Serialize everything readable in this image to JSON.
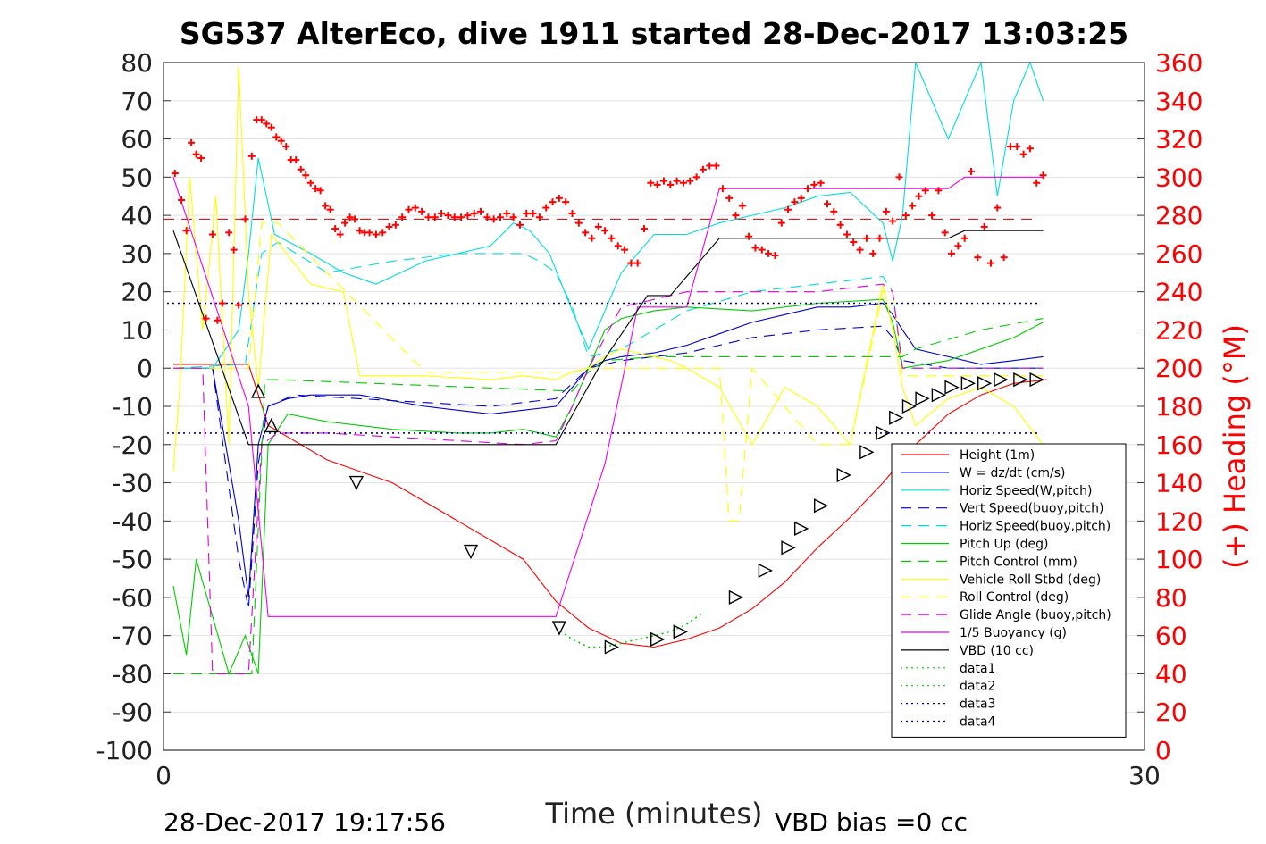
{
  "chart_data": {
    "type": "line",
    "title": "SG537 AlterEco, dive 1911 started 28-Dec-2017 13:03:25",
    "xlabel": "Time (minutes)",
    "ylabel": "",
    "y2label": "(+) Heading (°M)",
    "xlim": [
      0,
      30
    ],
    "ylim": [
      -100,
      80
    ],
    "y2lim": [
      0,
      360
    ],
    "x_ticks": [
      "0",
      "30"
    ],
    "y_ticks": [
      "80",
      "70",
      "60",
      "50",
      "40",
      "30",
      "20",
      "10",
      "0",
      "-10",
      "-20",
      "-30",
      "-40",
      "-50",
      "-60",
      "-70",
      "-80",
      "-90",
      "-100"
    ],
    "y2_ticks": [
      "360",
      "340",
      "320",
      "300",
      "280",
      "260",
      "240",
      "220",
      "200",
      "180",
      "160",
      "140",
      "120",
      "100",
      "80",
      "60",
      "40",
      "20",
      "0"
    ],
    "grid": true,
    "legend_position": "lower-right",
    "footer_left": "28-Dec-2017 19:17:56",
    "footer_right": "VBD bias =0 cc",
    "series": [
      {
        "name": "Height (1m)",
        "color": "#ff0000",
        "dash": "solid",
        "x": [
          0.3,
          2.6,
          3.2,
          5,
          7,
          9,
          11,
          12,
          13,
          14,
          15,
          16,
          17,
          18,
          19,
          20,
          21,
          22,
          23,
          24,
          25,
          26,
          27
        ],
        "y": [
          1,
          1,
          -15,
          -24,
          -30,
          -40,
          -50,
          -61,
          -68,
          -72,
          -73,
          -71,
          -68,
          -63,
          -56,
          -47,
          -39,
          -30,
          -20,
          -12,
          -7,
          -4,
          -3
        ]
      },
      {
        "name": "W = dz/dt (cm/s)",
        "color": "#0000cc",
        "dash": "solid",
        "x": [
          0.3,
          1.5,
          2.3,
          2.6,
          2.9,
          3.2,
          3.8,
          4.5,
          6,
          8,
          10,
          11,
          12,
          12.5,
          13,
          13.5,
          14,
          15,
          16,
          17,
          18,
          19,
          20,
          21,
          22,
          22.3,
          22.6,
          23,
          24,
          25,
          26,
          26.9
        ],
        "y": [
          0,
          0,
          -40,
          -60,
          -20,
          -10,
          -8,
          -7,
          -7,
          -10,
          -12,
          -11,
          -10,
          -5,
          0,
          2,
          3,
          4,
          6,
          9,
          12,
          14,
          16,
          16,
          17,
          14,
          10,
          5,
          3,
          1,
          2,
          3
        ]
      },
      {
        "name": "Horiz Speed(W,pitch)",
        "color": "#00dddd",
        "dash": "solid",
        "x": [
          0.3,
          1.5,
          2.3,
          2.6,
          2.9,
          3.4,
          4.5,
          5.5,
          6.5,
          8,
          9,
          10,
          10.7,
          11.2,
          11.8,
          12.5,
          13,
          13.5,
          14,
          15,
          16,
          17,
          18,
          19,
          20,
          21,
          22,
          22.3,
          22.6,
          23,
          24,
          25,
          25.5,
          26,
          26.5,
          26.9
        ],
        "y": [
          0,
          0,
          10,
          30,
          55,
          35,
          30,
          25,
          22,
          28,
          30,
          32,
          38,
          36,
          30,
          15,
          5,
          15,
          25,
          35,
          35,
          38,
          40,
          42,
          45,
          46,
          38,
          28,
          40,
          80,
          60,
          80,
          45,
          70,
          80,
          70
        ]
      },
      {
        "name": "Vert Speed(buoy,pitch)",
        "color": "#0000cc",
        "dash": "12,8",
        "x": [
          0.3,
          1.5,
          2.3,
          2.6,
          2.9,
          3.2,
          4,
          6,
          8,
          10,
          11,
          12,
          12.5,
          13,
          14,
          16,
          18,
          20,
          22,
          22.3,
          22.6,
          24,
          26,
          26.9
        ],
        "y": [
          0,
          0,
          -50,
          -63,
          -25,
          -10,
          -7,
          -8,
          -9,
          -10,
          -9,
          -8,
          -4,
          0,
          2,
          4,
          8,
          10,
          11,
          8,
          2,
          0,
          0,
          0
        ]
      },
      {
        "name": "Horiz Speed(buoy,pitch)",
        "color": "#00dddd",
        "dash": "12,8",
        "x": [
          0.3,
          2.5,
          3,
          3.5,
          5,
          7,
          9,
          11,
          11.5,
          12,
          12.5,
          13,
          14,
          16,
          18,
          20,
          22,
          22.3,
          22.6,
          24,
          26,
          26.9
        ],
        "y": [
          0,
          1,
          30,
          33,
          25,
          28,
          30,
          30,
          28,
          25,
          16,
          3,
          5,
          15,
          20,
          22,
          24,
          20,
          0,
          0,
          0,
          0
        ]
      },
      {
        "name": "Pitch Up (deg)",
        "color": "#00cc00",
        "dash": "solid",
        "x": [
          0.3,
          0.7,
          1,
          1.5,
          2,
          2.5,
          2.9,
          3.2,
          3.8,
          5,
          7,
          9,
          10,
          11,
          12,
          12.5,
          13,
          13.5,
          14,
          15,
          16,
          18,
          20,
          22,
          22.3,
          22.6,
          24,
          26,
          26.9
        ],
        "y": [
          -57,
          -75,
          -50,
          -65,
          -80,
          -70,
          -80,
          -20,
          -12,
          -14,
          -16,
          -17,
          -17,
          -16,
          -18,
          -10,
          0,
          10,
          13,
          15,
          16,
          15,
          17,
          18,
          12,
          0,
          2,
          8,
          12
        ]
      },
      {
        "name": "Pitch Control (mm)",
        "color": "#00cc00",
        "dash": "12,8",
        "x": [
          0.3,
          2.7,
          3.1,
          3.5,
          12.5,
          13,
          13.5,
          15,
          22.6,
          23,
          25,
          26.9
        ],
        "y": [
          -80,
          -80,
          -3,
          -3,
          -6,
          -1,
          2,
          3,
          3,
          5,
          10,
          13
        ]
      },
      {
        "name": "Vehicle Roll Stbd (deg)",
        "color": "#ffff00",
        "dash": "solid",
        "x": [
          0.3,
          0.5,
          0.8,
          1.2,
          1.6,
          2,
          2.3,
          2.6,
          2.9,
          3.3,
          4.5,
          5.5,
          6,
          8,
          10,
          11,
          12,
          12.5,
          13,
          13.5,
          14,
          14.5,
          15.5,
          16,
          17,
          18,
          19,
          20,
          21,
          22,
          22.3,
          22.6,
          23,
          24,
          25,
          26,
          26.9
        ],
        "y": [
          -27,
          -5,
          50,
          10,
          45,
          -20,
          79,
          20,
          -5,
          35,
          22,
          20,
          -2,
          -2,
          -3,
          -2,
          -3,
          -1,
          0,
          3,
          5,
          4,
          2,
          0,
          -5,
          -20,
          -5,
          -10,
          -20,
          22,
          10,
          -5,
          -15,
          -8,
          -5,
          -10,
          -20
        ]
      },
      {
        "name": "Roll Control (deg)",
        "color": "#ffff00",
        "dash": "12,8",
        "x": [
          0.3,
          2.6,
          3,
          3.5,
          8,
          12.5,
          13,
          17,
          17.3,
          17.6,
          18,
          20,
          21,
          22,
          22.3,
          22.6,
          24,
          26,
          26.9
        ],
        "y": [
          0,
          0,
          38,
          38,
          -1,
          -1,
          0,
          0,
          -40,
          -40,
          0,
          -20,
          -20,
          20,
          20,
          -2,
          -2,
          -2,
          -2
        ]
      },
      {
        "name": "Glide Angle (buoy,pitch)",
        "color": "#dd00dd",
        "dash": "12,8",
        "x": [
          0.3,
          1.2,
          1.5,
          2.3,
          2.6,
          3,
          3.5,
          5,
          7,
          9,
          11,
          12,
          12.5,
          13,
          13.5,
          14,
          16,
          18,
          20,
          22,
          22.3,
          22.6,
          24,
          26,
          26.9
        ],
        "y": [
          0,
          0,
          -80,
          -80,
          -80,
          -20,
          -17,
          -17,
          -18,
          -19,
          -20,
          -19,
          -10,
          0,
          8,
          16,
          20,
          20,
          20,
          22,
          20,
          0,
          0,
          0,
          0
        ]
      },
      {
        "name": "1/5 Buoyancy (g)",
        "color": "#ee00ee",
        "dash": "solid",
        "x": [
          0.3,
          2.6,
          3.2,
          12,
          13.5,
          14.5,
          16,
          17,
          19,
          22,
          23,
          24,
          24.5,
          25,
          26.9
        ],
        "y": [
          50,
          -10,
          -65,
          -65,
          -25,
          16,
          16,
          47,
          47,
          47,
          47,
          47,
          50,
          50,
          50
        ]
      },
      {
        "name": "VBD (10 cc)",
        "color": "#000000",
        "dash": "solid",
        "x": [
          0.3,
          2.6,
          3.2,
          12,
          13.3,
          14.8,
          15.5,
          17,
          22,
          24,
          24.5,
          26.9
        ],
        "y": [
          36,
          -20,
          -20,
          -20,
          0,
          19,
          19,
          34,
          34,
          34,
          36,
          36
        ]
      },
      {
        "name": "data1",
        "color": "#00cc00",
        "dash": "2,4",
        "x": [
          12,
          12.5,
          13,
          13.5,
          14,
          14.5,
          15,
          15.5,
          16,
          16.5
        ],
        "y": [
          -68,
          -71,
          -73,
          -73,
          -72,
          -71,
          -70,
          -69,
          -67,
          -64
        ]
      },
      {
        "name": "data2",
        "color": "#00cc00",
        "dash": "2,4",
        "x": [],
        "y": []
      },
      {
        "name": "data3",
        "color": "#00008b",
        "dash": "2,4",
        "x": [
          0,
          30
        ],
        "y": [
          17,
          17
        ]
      },
      {
        "name": "data4",
        "color": "#00008b",
        "dash": "2,4",
        "x": [
          0,
          30
        ],
        "y": [
          -17,
          -17
        ]
      }
    ],
    "reference_line": {
      "color": "#cc0000",
      "dash": "12,8",
      "y": 39
    },
    "heading_points": {
      "color": "#ff0000",
      "marker": "+",
      "axis": "right",
      "x": [
        0.35,
        0.55,
        0.7,
        0.85,
        1.0,
        1.15,
        1.3,
        1.5,
        1.65,
        1.8,
        2.0,
        2.15,
        2.3,
        2.5,
        2.7,
        2.85,
        3.0,
        3.15,
        3.3,
        3.45,
        3.6,
        3.75,
        3.9,
        4.05,
        4.2,
        4.35,
        4.5,
        4.65,
        4.8,
        4.95,
        5.1,
        5.25,
        5.4,
        5.55,
        5.7,
        5.85,
        6.0,
        6.15,
        6.3,
        6.5,
        6.7,
        6.9,
        7.1,
        7.3,
        7.5,
        7.7,
        7.9,
        8.1,
        8.3,
        8.5,
        8.7,
        8.9,
        9.1,
        9.3,
        9.5,
        9.7,
        9.9,
        10.1,
        10.3,
        10.5,
        10.7,
        10.9,
        11.1,
        11.3,
        11.5,
        11.7,
        11.9,
        12.1,
        12.3,
        12.5,
        12.7,
        12.9,
        13.1,
        13.3,
        13.5,
        13.7,
        13.9,
        14.1,
        14.3,
        14.5,
        14.7,
        14.9,
        15.1,
        15.3,
        15.5,
        15.7,
        15.9,
        16.1,
        16.3,
        16.5,
        16.7,
        16.9,
        17.1,
        17.3,
        17.5,
        17.7,
        17.9,
        18.1,
        18.3,
        18.5,
        18.7,
        18.9,
        19.1,
        19.3,
        19.5,
        19.7,
        19.9,
        20.1,
        20.3,
        20.5,
        20.7,
        20.9,
        21.1,
        21.3,
        21.5,
        21.7,
        21.9,
        22.1,
        22.3,
        22.5,
        22.7,
        22.9,
        23.1,
        23.3,
        23.5,
        23.7,
        23.9,
        24.1,
        24.3,
        24.5,
        24.7,
        24.9,
        25.1,
        25.3,
        25.5,
        25.7,
        25.9,
        26.1,
        26.3,
        26.5,
        26.7,
        26.9
      ],
      "y": [
        302,
        288,
        272,
        318,
        312,
        310,
        226,
        270,
        225,
        234,
        271,
        262,
        233,
        278,
        311,
        330,
        330,
        328,
        326,
        321,
        319,
        316,
        309,
        309,
        304,
        301,
        297,
        294,
        293,
        285,
        283,
        273,
        270,
        276,
        279,
        278,
        272,
        271,
        271,
        270,
        271,
        274,
        275,
        279,
        283,
        284,
        282,
        279,
        279,
        281,
        280,
        279,
        279,
        280,
        281,
        282,
        279,
        278,
        279,
        281,
        279,
        275,
        281,
        281,
        279,
        284,
        287,
        289,
        287,
        281,
        276,
        271,
        268,
        274,
        272,
        268,
        264,
        262,
        255,
        255,
        273,
        297,
        296,
        298,
        296,
        298,
        297,
        298,
        300,
        304,
        306,
        306,
        294,
        289,
        280,
        285,
        269,
        263,
        262,
        260,
        259,
        276,
        283,
        287,
        289,
        294,
        296,
        297,
        286,
        282,
        275,
        270,
        266,
        262,
        268,
        260,
        268,
        282,
        277,
        300,
        280,
        285,
        290,
        293,
        280,
        293,
        271,
        260,
        264,
        268,
        303,
        258,
        274,
        255,
        284,
        258,
        316,
        316,
        312,
        315,
        297,
        301
      ]
    },
    "triangle_markers": {
      "color": "#000000",
      "marker": "triangle",
      "x": [
        2.9,
        3.3,
        5.9,
        9.4,
        12.1,
        13.7,
        15.1,
        15.8,
        17.5,
        18.4,
        19.1,
        19.5,
        20.1,
        20.8,
        21.5,
        22.0,
        22.4,
        22.8,
        23.2,
        23.7,
        24.1,
        24.6,
        25.1,
        25.6,
        26.2,
        26.7
      ],
      "y": [
        -6,
        -15,
        -30,
        -48,
        -68,
        -73,
        -71,
        -69,
        -60,
        -53,
        -47,
        -42,
        -36,
        -28,
        -22,
        -17,
        -13,
        -10,
        -8,
        -7,
        -5,
        -4,
        -4,
        -3,
        -3,
        -3
      ]
    }
  }
}
